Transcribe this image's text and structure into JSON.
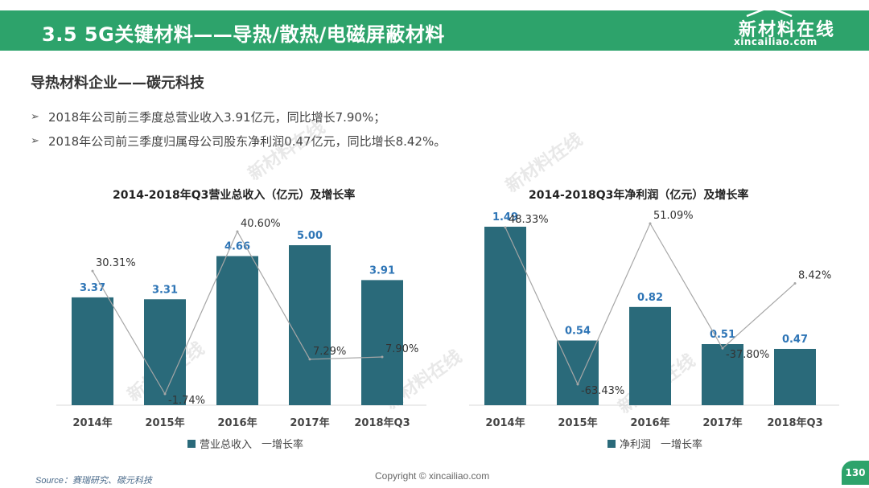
{
  "header": {
    "title": "3.5 5G关键材料——导热/散热/电磁屏蔽材料",
    "logo_main": "新材料在线",
    "logo_sub": "xincailiao.com"
  },
  "section_title": "导热材料企业——碳元科技",
  "bullets": [
    {
      "marker": "➢",
      "text": "2018年公司前三季度总营业收入3.91亿元，同比增长7.90%；"
    },
    {
      "marker": "➢",
      "text": "2018年公司前三季度归属母公司股东净利润0.47亿元，同比增长8.42%。"
    }
  ],
  "chart_data": [
    {
      "type": "bar",
      "title": "2014-2018年Q3营业总收入（亿元）及增长率",
      "categories": [
        "2014年",
        "2015年",
        "2016年",
        "2017年",
        "2018年Q3"
      ],
      "series": [
        {
          "name": "营业总收入",
          "kind": "bar",
          "values": [
            3.37,
            3.31,
            4.66,
            5.0,
            3.91
          ],
          "labels": [
            "3.37",
            "3.31",
            "4.66",
            "5.00",
            "3.91"
          ]
        },
        {
          "name": "增长率",
          "kind": "line",
          "values": [
            30.31,
            -1.74,
            40.6,
            7.29,
            7.9
          ],
          "labels": [
            "30.31%",
            "-1.74%",
            "40.60%",
            "7.29%",
            "7.90%"
          ]
        }
      ],
      "legend": {
        "bar": "营业总收入",
        "line": "增长率"
      },
      "legend_position": "bottom",
      "bar_color": "#2a6a7a",
      "label_color": "#2e75b6",
      "line_color": "#a6a6a6"
    },
    {
      "type": "bar",
      "title": "2014-2018Q3年净利润（亿元）及增长率",
      "categories": [
        "2014年",
        "2015年",
        "2016年",
        "2017年",
        "2018年Q3"
      ],
      "series": [
        {
          "name": "净利润",
          "kind": "bar",
          "values": [
            1.49,
            0.54,
            0.82,
            0.51,
            0.47
          ],
          "labels": [
            "1.49",
            "0.54",
            "0.82",
            "0.51",
            "0.47"
          ]
        },
        {
          "name": "增长率",
          "kind": "line",
          "values": [
            48.33,
            -63.43,
            51.09,
            -37.8,
            8.42
          ],
          "labels": [
            "48.33%",
            "-63.43%",
            "51.09%",
            "-37.80%",
            "8.42%"
          ]
        }
      ],
      "legend": {
        "bar": "净利润",
        "line": "增长率"
      },
      "legend_position": "bottom",
      "bar_color": "#2a6a7a",
      "label_color": "#2e75b6",
      "line_color": "#a6a6a6"
    }
  ],
  "source": "Source：赛瑞研究、碳元科技",
  "copyright": "Copyright © xincailiao.com",
  "page_number": "130",
  "watermark": {
    "main": "新材料在线",
    "sub": "xincailiao.com"
  },
  "colors": {
    "header": "#2da36b",
    "bar": "#2a6a7a"
  }
}
